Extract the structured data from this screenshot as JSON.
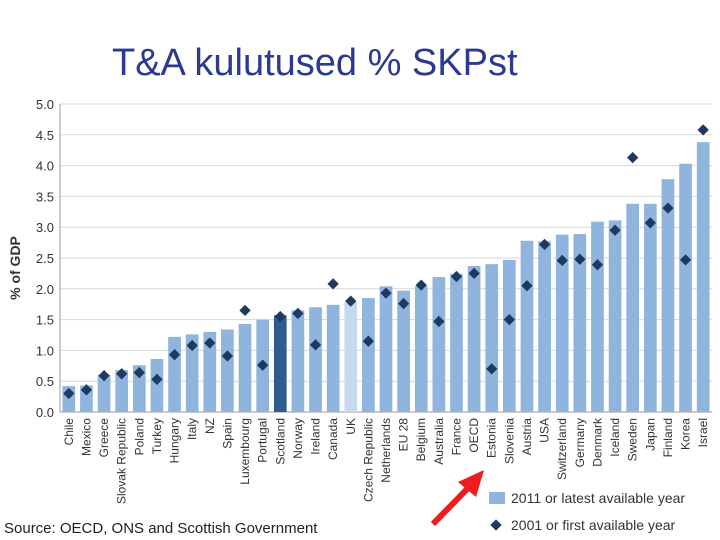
{
  "title": "T&A kulutused % SKPst",
  "source": "Source: OECD, ONS and Scottish Government",
  "chart_data": {
    "type": "bar",
    "ylabel": "% of GDP",
    "ylim": [
      0,
      5.0
    ],
    "yticks": [
      "0.0",
      "0.5",
      "1.0",
      "1.5",
      "2.0",
      "2.5",
      "3.0",
      "3.5",
      "4.0",
      "4.5",
      "5.0"
    ],
    "grid": true,
    "legend_position": "bottom-right",
    "categories": [
      "Chile",
      "Mexico",
      "Greece",
      "Slovak Republic",
      "Poland",
      "Turkey",
      "Hungary",
      "Italy",
      "NZ",
      "Spain",
      "Luxembourg",
      "Portugal",
      "Scotland",
      "Norway",
      "Ireland",
      "Canada",
      "UK",
      "Czech Republic",
      "Netherlands",
      "EU 28",
      "Belgium",
      "Australia",
      "France",
      "OECD",
      "Estonia",
      "Slovenia",
      "Austria",
      "USA",
      "Switzerland",
      "Germany",
      "Denmark",
      "Iceland",
      "Sweden",
      "Japan",
      "Finland",
      "Korea",
      "Israel"
    ],
    "series": [
      {
        "name": "2011 or latest available year",
        "kind": "bar",
        "values": [
          0.42,
          0.43,
          0.6,
          0.68,
          0.76,
          0.86,
          1.22,
          1.26,
          1.3,
          1.34,
          1.43,
          1.5,
          1.57,
          1.65,
          1.7,
          1.74,
          1.78,
          1.85,
          2.04,
          1.97,
          2.04,
          2.19,
          2.24,
          2.37,
          2.4,
          2.47,
          2.78,
          2.77,
          2.88,
          2.89,
          3.09,
          3.11,
          3.38,
          3.38,
          3.78,
          4.03,
          4.38
        ]
      },
      {
        "name": "2001 or first available year",
        "kind": "marker",
        "values": [
          0.3,
          0.36,
          0.59,
          0.62,
          0.64,
          0.53,
          0.93,
          1.08,
          1.12,
          0.91,
          1.65,
          0.76,
          1.55,
          1.6,
          1.09,
          2.08,
          1.8,
          1.15,
          1.93,
          1.76,
          2.06,
          1.47,
          2.2,
          2.25,
          0.7,
          1.5,
          2.05,
          2.72,
          2.46,
          2.48,
          2.39,
          2.95,
          4.13,
          3.07,
          3.31,
          2.47,
          4.58
        ]
      }
    ],
    "highlight_colors": {
      "default_bar": "#8fb4de",
      "Scotland": "#2e5c8e",
      "UK": "#c5d9ef",
      "marker": "#1f3a5f"
    }
  },
  "arrow_color": "#ee1c1c"
}
